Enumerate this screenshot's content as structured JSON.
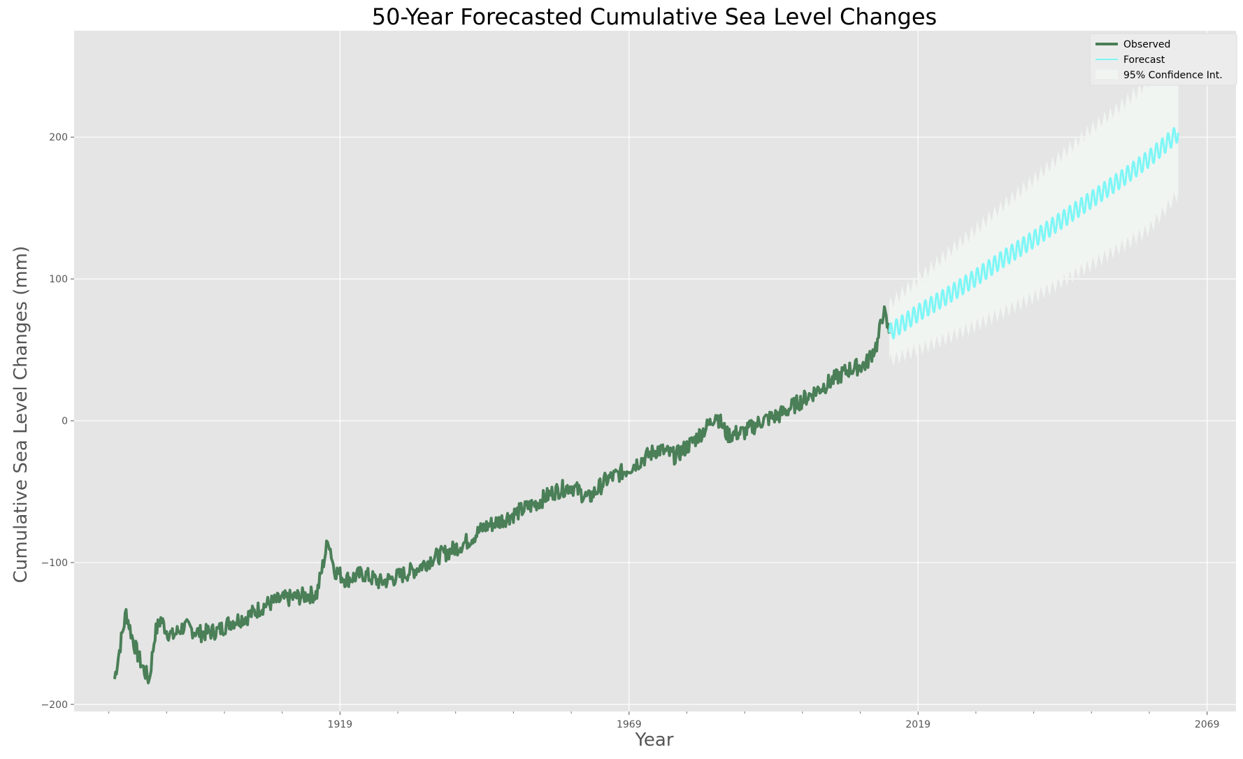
{
  "chart_data": {
    "type": "line",
    "title": "50-Year Forecasted Cumulative Sea Level Changes",
    "xlabel": "Year",
    "ylabel": "Cumulative Sea Level Changes (mm)",
    "xlim": [
      1873,
      2074
    ],
    "ylim": [
      -205,
      275
    ],
    "x_ticks": [
      1919,
      1969,
      2019,
      2069
    ],
    "y_ticks": [
      -200,
      -100,
      0,
      100,
      200
    ],
    "grid": true,
    "legend_position": "top-right",
    "colors": {
      "plot_background": "#e5e5e5",
      "grid": "#ffffff",
      "observed": "#4a7f57",
      "forecast": "#7ef6f6",
      "confidence": "#f0f5f2"
    },
    "series": [
      {
        "name": "Observed",
        "x": [
          1880,
          1881,
          1882,
          1883,
          1884,
          1885,
          1886,
          1887,
          1888,
          1889,
          1890,
          1892,
          1895,
          1898,
          1900,
          1903,
          1906,
          1909,
          1912,
          1915,
          1917,
          1918,
          1920,
          1923,
          1926,
          1929,
          1932,
          1935,
          1938,
          1941,
          1944,
          1947,
          1950,
          1953,
          1956,
          1959,
          1962,
          1965,
          1968,
          1971,
          1974,
          1977,
          1980,
          1983,
          1984,
          1986,
          1989,
          1992,
          1995,
          1998,
          2001,
          2004,
          2007,
          2010,
          2012,
          2013,
          2014
        ],
        "y": [
          -182,
          -158,
          -135,
          -152,
          -165,
          -175,
          -183,
          -150,
          -140,
          -148,
          -152,
          -145,
          -150,
          -148,
          -142,
          -138,
          -130,
          -126,
          -124,
          -122,
          -83,
          -105,
          -112,
          -108,
          -114,
          -110,
          -105,
          -97,
          -92,
          -85,
          -75,
          -70,
          -64,
          -58,
          -50,
          -46,
          -55,
          -42,
          -36,
          -28,
          -20,
          -25,
          -15,
          -2,
          5,
          -10,
          -8,
          0,
          4,
          12,
          20,
          28,
          36,
          40,
          55,
          78,
          62
        ]
      },
      {
        "name": "Forecast",
        "x": [
          2014,
          2019,
          2024,
          2029,
          2034,
          2039,
          2044,
          2049,
          2054,
          2059,
          2064
        ],
        "y": [
          62,
          76,
          88,
          101,
          115,
          128,
          142,
          156,
          170,
          185,
          203
        ]
      },
      {
        "name": "95% Confidence Int.",
        "x": [
          2014,
          2019,
          2024,
          2029,
          2034,
          2039,
          2044,
          2049,
          2054,
          2059,
          2064
        ],
        "lower": [
          42,
          50,
          58,
          67,
          77,
          87,
          98,
          110,
          122,
          135,
          160
        ],
        "upper": [
          82,
          100,
          118,
          135,
          153,
          170,
          188,
          206,
          222,
          240,
          248
        ]
      }
    ]
  }
}
